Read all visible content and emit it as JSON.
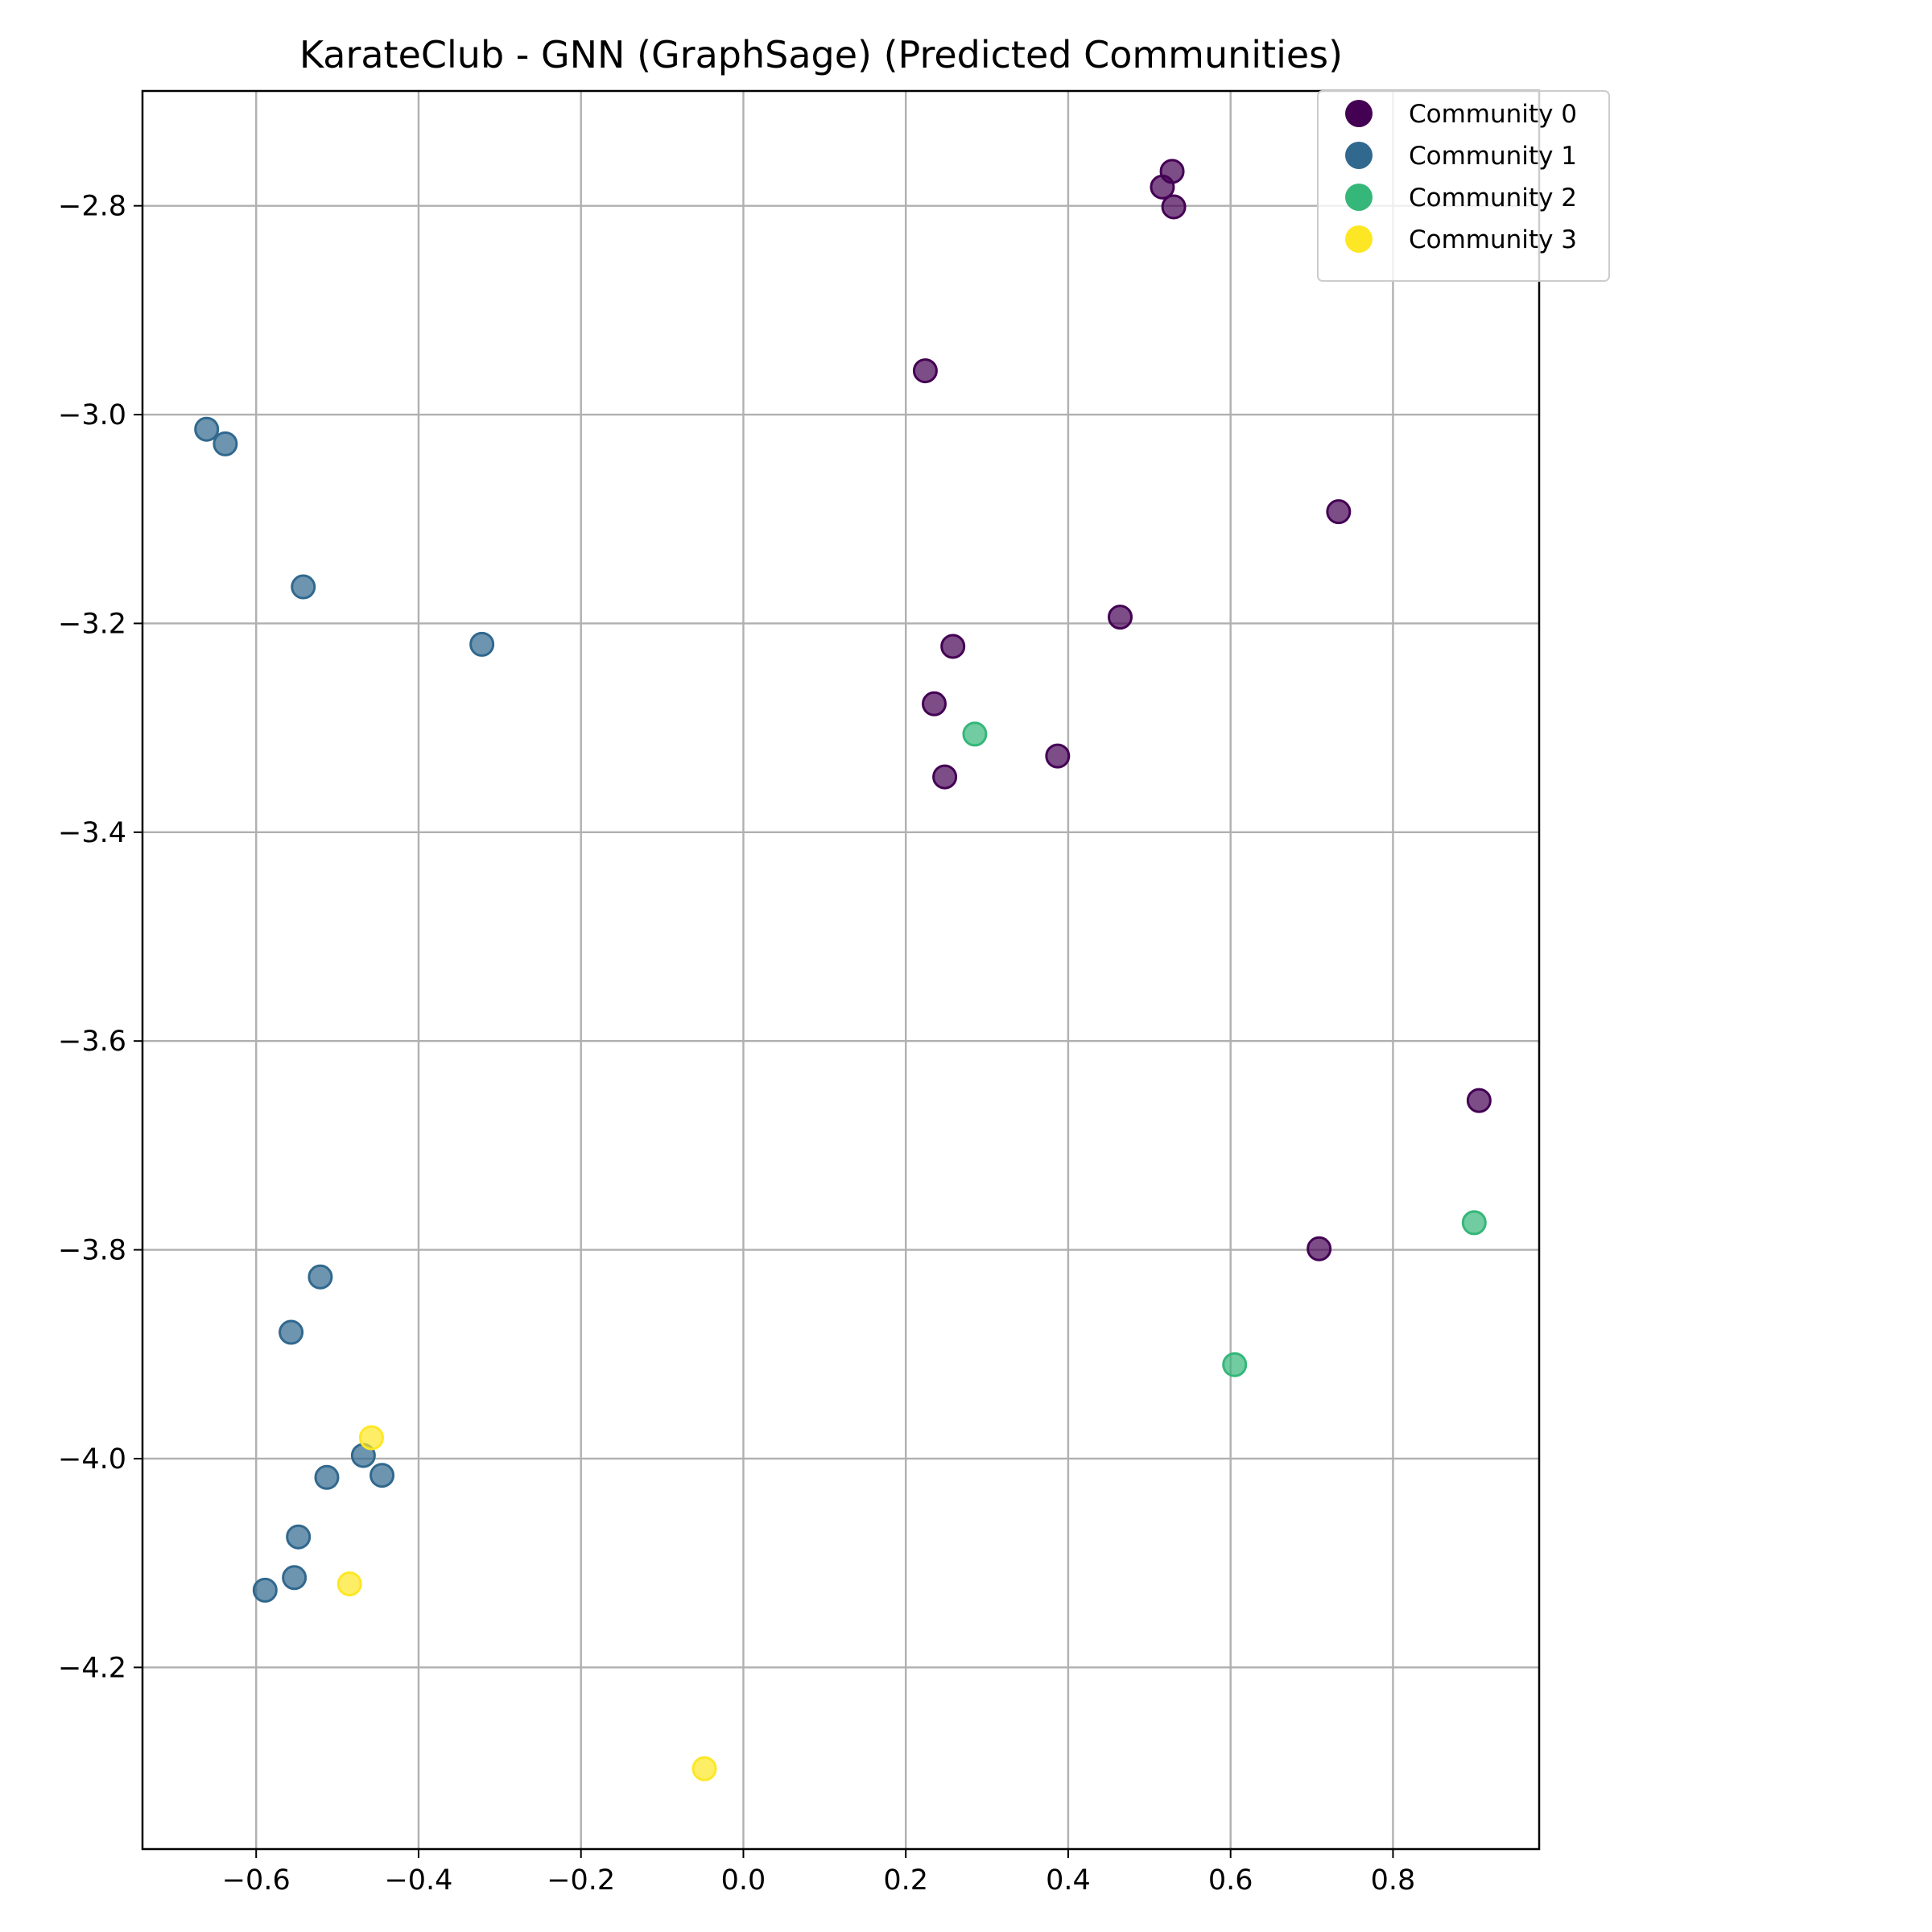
{
  "chart_data": {
    "type": "scatter",
    "title": "KarateClub - GNN (GraphSage) (Predicted Communities)",
    "xlabel": "",
    "ylabel": "",
    "xlim": [
      -0.74,
      0.98
    ],
    "ylim": [
      -4.374,
      -2.69
    ],
    "xticks": [
      -0.6,
      -0.4,
      -0.2,
      0.0,
      0.2,
      0.4,
      0.6,
      0.8
    ],
    "yticks": [
      -4.2,
      -4.0,
      -3.8,
      -3.6,
      -3.4,
      -3.2,
      -3.0,
      -2.8
    ],
    "xtick_labels": [
      "−0.6",
      "−0.4",
      "−0.2",
      "0.0",
      "0.2",
      "0.4",
      "0.6",
      "0.8"
    ],
    "ytick_labels": [
      "−4.2",
      "−4.0",
      "−3.8",
      "−3.6",
      "−3.4",
      "−3.2",
      "−3.0",
      "−2.8"
    ],
    "grid": true,
    "legend_position": "top-right",
    "series": [
      {
        "name": "Community 0",
        "color": "#440154",
        "points": [
          [
            0.528,
            -2.767
          ],
          [
            0.516,
            -2.782
          ],
          [
            0.53,
            -2.801
          ],
          [
            0.224,
            -2.958
          ],
          [
            0.733,
            -3.093
          ],
          [
            0.464,
            -3.194
          ],
          [
            0.258,
            -3.222
          ],
          [
            0.235,
            -3.277
          ],
          [
            0.387,
            -3.327
          ],
          [
            0.248,
            -3.347
          ],
          [
            0.906,
            -3.657
          ],
          [
            0.709,
            -3.799
          ]
        ]
      },
      {
        "name": "Community 1",
        "color": "#31688e",
        "points": [
          [
            -0.661,
            -3.014
          ],
          [
            -0.638,
            -3.028
          ],
          [
            -0.542,
            -3.165
          ],
          [
            -0.322,
            -3.22
          ],
          [
            -0.521,
            -3.826
          ],
          [
            -0.557,
            -3.879
          ],
          [
            -0.468,
            -3.997
          ],
          [
            -0.445,
            -4.016
          ],
          [
            -0.513,
            -4.018
          ],
          [
            -0.548,
            -4.075
          ],
          [
            -0.553,
            -4.114
          ],
          [
            -0.589,
            -4.126
          ]
        ]
      },
      {
        "name": "Community 2",
        "color": "#35b779",
        "points": [
          [
            0.285,
            -3.306
          ],
          [
            0.9,
            -3.774
          ],
          [
            0.605,
            -3.91
          ]
        ]
      },
      {
        "name": "Community 3",
        "color": "#fde725",
        "points": [
          [
            -0.458,
            -3.98
          ],
          [
            -0.485,
            -4.12
          ],
          [
            -0.048,
            -4.297
          ]
        ]
      }
    ]
  }
}
